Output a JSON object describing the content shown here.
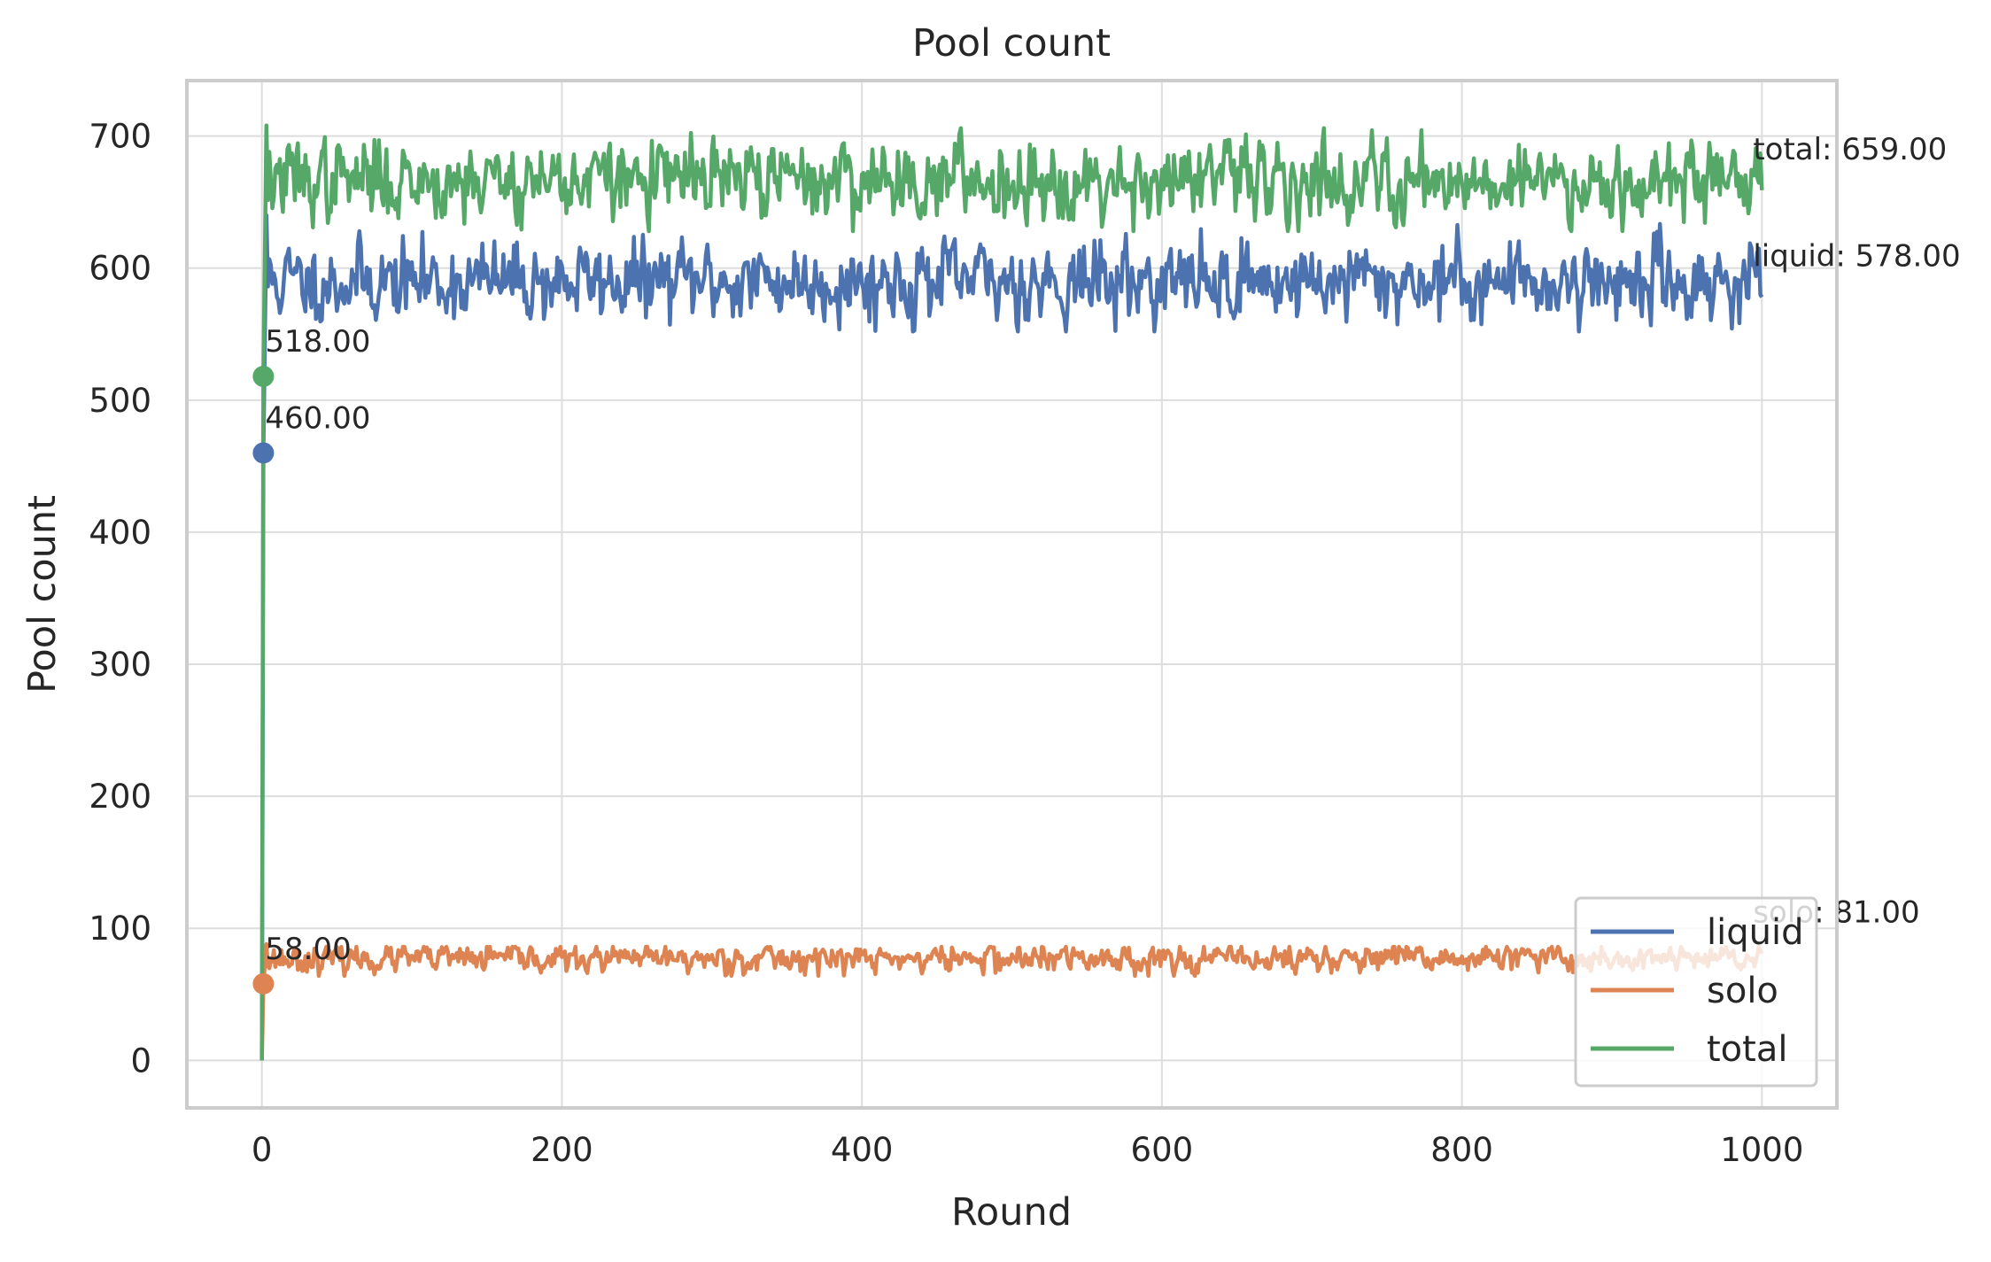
{
  "chart_data": {
    "type": "line",
    "title": "Pool count",
    "xlabel": "Round",
    "ylabel": "Pool count",
    "xlim": [
      -50,
      1050
    ],
    "ylim": [
      -36,
      742
    ],
    "x_ticks": [
      0,
      200,
      400,
      600,
      800,
      1000
    ],
    "y_ticks": [
      0,
      100,
      200,
      300,
      400,
      500,
      600,
      700
    ],
    "grid": true,
    "legend_position": "lower-right",
    "x_range": [
      0,
      1000
    ],
    "series": [
      {
        "name": "liquid",
        "color": "#4c72b0",
        "start_value": 460,
        "end_value": 578,
        "mean": 590,
        "noise": 14,
        "spike_max": 640,
        "spike_min": 552,
        "start_label": "460.00",
        "end_label": "liquid: 578.00"
      },
      {
        "name": "solo",
        "color": "#dd8452",
        "start_value": 58,
        "end_value": 81,
        "mean": 77,
        "noise": 5,
        "spike_max": 88,
        "spike_min": 64,
        "start_label": "58.00",
        "end_label": "solo: 81.00"
      },
      {
        "name": "total",
        "color": "#55a868",
        "start_value": 518,
        "end_value": 659,
        "mean": 667,
        "noise": 14,
        "spike_max": 708,
        "spike_min": 628,
        "start_label": "518.00",
        "end_label": "total: 659.00"
      }
    ]
  }
}
